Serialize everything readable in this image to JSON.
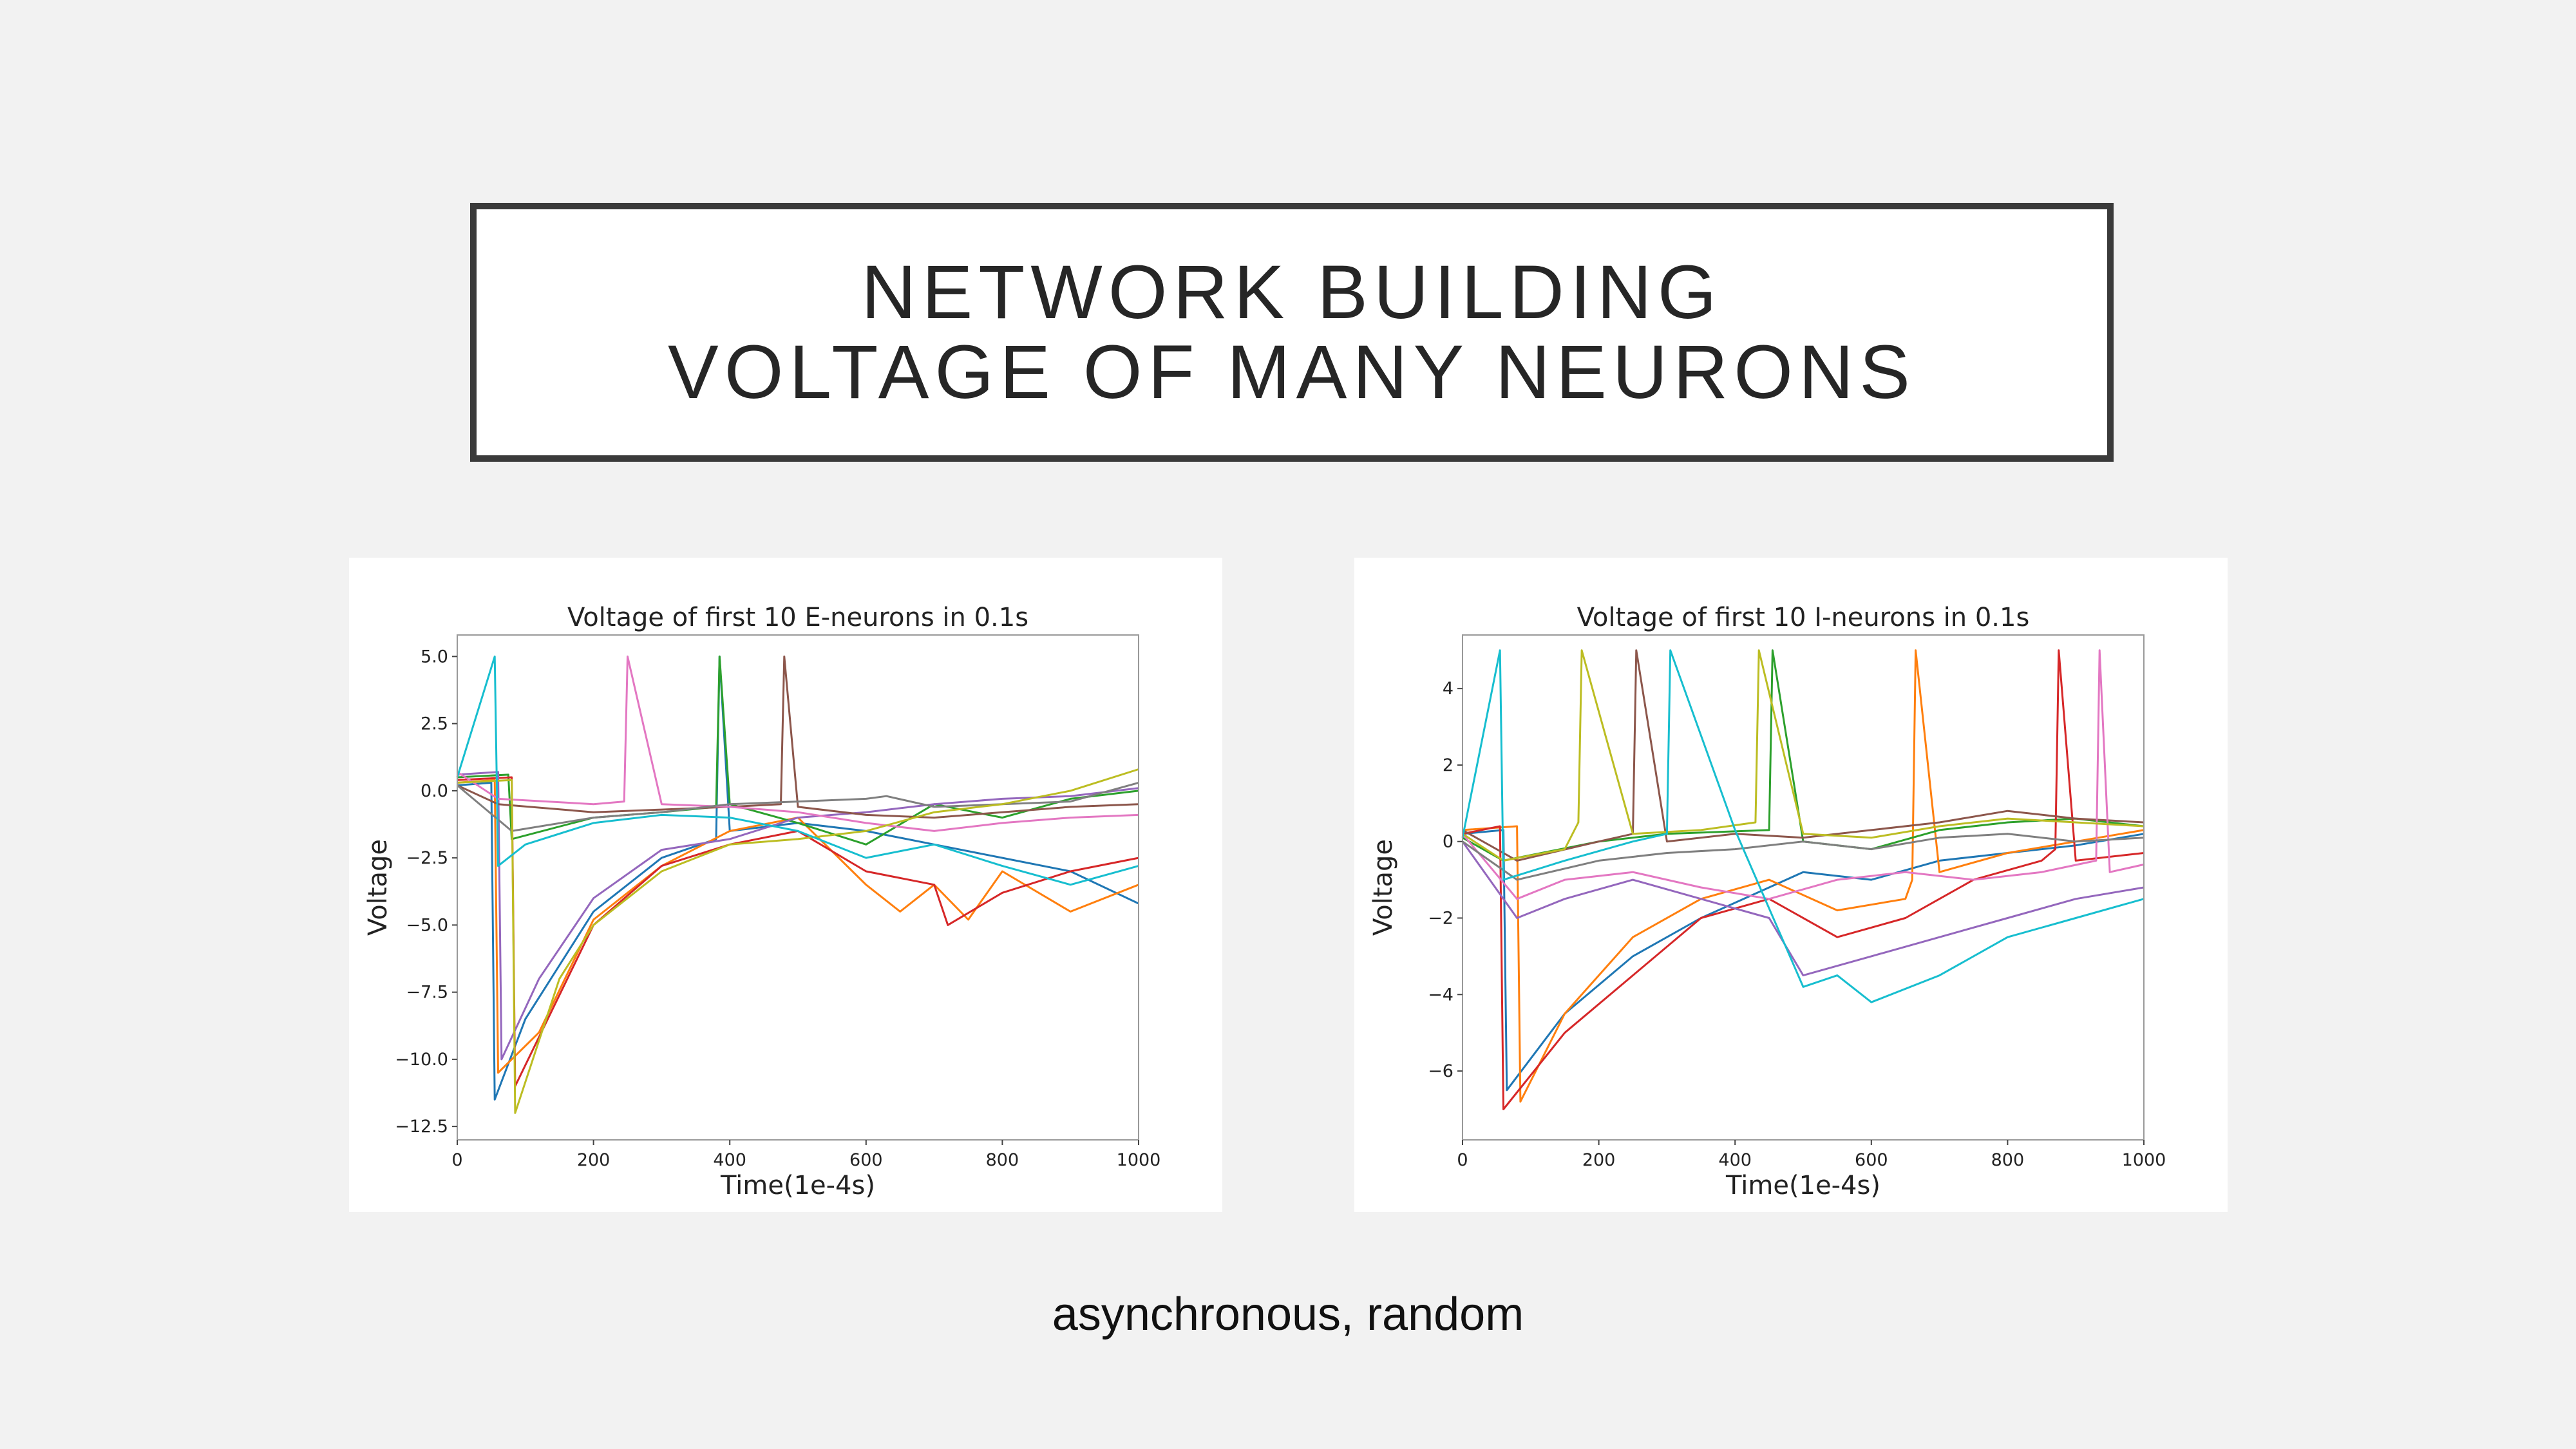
{
  "slide": {
    "title_line1": "NETWORK BUILDING",
    "title_line2": "VOLTAGE OF MANY NEURONS",
    "caption": "asynchronous, random"
  },
  "series_colors": [
    "#1f77b4",
    "#ff7f0e",
    "#2ca02c",
    "#d62728",
    "#9467bd",
    "#8c564b",
    "#e377c2",
    "#7f7f7f",
    "#bcbd22",
    "#17becf"
  ],
  "chart_data": [
    {
      "type": "line",
      "title": "Voltage of first 10 E-neurons in 0.1s",
      "xlabel": "Time(1e-4s)",
      "ylabel": "Voltage",
      "xlim": [
        0,
        1000
      ],
      "ylim": [
        -13,
        5.8
      ],
      "xticks": [
        0,
        200,
        400,
        600,
        800,
        1000
      ],
      "xtick_labels": [
        "0",
        "200",
        "400",
        "600",
        "800",
        "1000"
      ],
      "yticks": [
        5.0,
        2.5,
        0.0,
        -2.5,
        -5.0,
        -7.5,
        -10.0,
        -12.5
      ],
      "ytick_labels": [
        "5.0",
        "2.5",
        "0.0",
        "−2.5",
        "−5.0",
        "−7.5",
        "−10.0",
        "−12.5"
      ],
      "grid": false,
      "legend": "none",
      "series": [
        {
          "x": [
            0,
            50,
            55,
            100,
            200,
            300,
            380,
            385,
            400,
            500,
            600,
            700,
            800,
            900,
            1000
          ],
          "y": [
            0.2,
            0.3,
            -11.5,
            -8.5,
            -4.5,
            -2.5,
            -1.8,
            5.0,
            -1.5,
            -1.2,
            -1.5,
            -2.0,
            -2.5,
            -3.0,
            -4.2
          ]
        },
        {
          "x": [
            0,
            55,
            60,
            120,
            200,
            300,
            400,
            500,
            600,
            650,
            700,
            750,
            800,
            900,
            1000
          ],
          "y": [
            0.3,
            0.4,
            -10.5,
            -9.0,
            -4.8,
            -2.8,
            -1.5,
            -1.0,
            -3.5,
            -4.5,
            -3.5,
            -4.8,
            -3.0,
            -4.5,
            -3.5
          ]
        },
        {
          "x": [
            0,
            75,
            80,
            200,
            300,
            380,
            385,
            400,
            500,
            600,
            700,
            800,
            900,
            1000
          ],
          "y": [
            0.5,
            0.6,
            -1.8,
            -1.0,
            -0.8,
            -0.6,
            5.0,
            -0.5,
            -1.2,
            -2.0,
            -0.5,
            -1.0,
            -0.3,
            0.0
          ]
        },
        {
          "x": [
            0,
            80,
            85,
            200,
            300,
            400,
            500,
            600,
            700,
            720,
            800,
            900,
            1000
          ],
          "y": [
            0.4,
            0.5,
            -11.0,
            -5.0,
            -2.8,
            -2.0,
            -1.5,
            -3.0,
            -3.5,
            -5.0,
            -3.8,
            -3.0,
            -2.5
          ]
        },
        {
          "x": [
            0,
            60,
            65,
            120,
            200,
            300,
            400,
            500,
            600,
            700,
            800,
            900,
            1000
          ],
          "y": [
            0.6,
            0.7,
            -10.0,
            -7.0,
            -4.0,
            -2.2,
            -1.8,
            -1.0,
            -0.8,
            -0.5,
            -0.3,
            -0.2,
            0.1
          ]
        },
        {
          "x": [
            0,
            60,
            200,
            300,
            400,
            475,
            480,
            500,
            600,
            700,
            800,
            900,
            1000
          ],
          "y": [
            0.2,
            -0.5,
            -0.8,
            -0.7,
            -0.6,
            -0.5,
            5.0,
            -0.6,
            -0.9,
            -1.0,
            -0.8,
            -0.6,
            -0.5
          ]
        },
        {
          "x": [
            0,
            60,
            200,
            245,
            250,
            300,
            400,
            500,
            600,
            700,
            800,
            900,
            1000
          ],
          "y": [
            0.7,
            -0.3,
            -0.5,
            -0.4,
            5.0,
            -0.5,
            -0.6,
            -0.8,
            -1.2,
            -1.5,
            -1.2,
            -1.0,
            -0.9
          ]
        },
        {
          "x": [
            0,
            80,
            200,
            300,
            400,
            500,
            600,
            630,
            700,
            800,
            900,
            1000
          ],
          "y": [
            0.2,
            -1.5,
            -1.0,
            -0.8,
            -0.5,
            -0.4,
            -0.3,
            -0.2,
            -0.6,
            -0.5,
            -0.4,
            0.3
          ]
        },
        {
          "x": [
            0,
            80,
            85,
            150,
            200,
            300,
            400,
            500,
            600,
            700,
            800,
            900,
            1000
          ],
          "y": [
            0.3,
            0.4,
            -12.0,
            -7.0,
            -5.0,
            -3.0,
            -2.0,
            -1.8,
            -1.5,
            -0.8,
            -0.5,
            0.0,
            0.8
          ]
        },
        {
          "x": [
            0,
            55,
            60,
            100,
            200,
            300,
            400,
            500,
            600,
            700,
            800,
            900,
            1000
          ],
          "y": [
            0.5,
            5.0,
            -2.8,
            -2.0,
            -1.2,
            -0.9,
            -1.0,
            -1.5,
            -2.5,
            -2.0,
            -2.8,
            -3.5,
            -2.8
          ]
        }
      ]
    },
    {
      "type": "line",
      "title": "Voltage of first 10 I-neurons in 0.1s",
      "xlabel": "Time(1e-4s)",
      "ylabel": "Voltage",
      "xlim": [
        0,
        1000
      ],
      "ylim": [
        -7.8,
        5.4
      ],
      "xticks": [
        0,
        200,
        400,
        600,
        800,
        1000
      ],
      "xtick_labels": [
        "0",
        "200",
        "400",
        "600",
        "800",
        "1000"
      ],
      "yticks": [
        4,
        2,
        0,
        -2,
        -4,
        -6
      ],
      "ytick_labels": [
        "4",
        "2",
        "0",
        "−2",
        "−4",
        "−6"
      ],
      "grid": false,
      "legend": "none",
      "series": [
        {
          "x": [
            0,
            60,
            65,
            150,
            250,
            350,
            450,
            500,
            600,
            700,
            800,
            900,
            1000
          ],
          "y": [
            0.2,
            0.3,
            -6.5,
            -4.5,
            -3.0,
            -2.0,
            -1.2,
            -0.8,
            -1.0,
            -0.5,
            -0.3,
            -0.1,
            0.2
          ]
        },
        {
          "x": [
            0,
            80,
            85,
            150,
            250,
            350,
            450,
            550,
            650,
            660,
            665,
            700,
            800,
            900,
            1000
          ],
          "y": [
            0.3,
            0.4,
            -6.8,
            -4.5,
            -2.5,
            -1.5,
            -1.0,
            -1.8,
            -1.5,
            -1.0,
            5.0,
            -0.8,
            -0.3,
            0.0,
            0.3
          ]
        },
        {
          "x": [
            0,
            60,
            200,
            300,
            450,
            455,
            500,
            600,
            700,
            800,
            900,
            1000
          ],
          "y": [
            0.1,
            -0.5,
            0.0,
            0.2,
            0.3,
            5.0,
            0.0,
            -0.2,
            0.3,
            0.5,
            0.6,
            0.4
          ]
        },
        {
          "x": [
            0,
            55,
            60,
            150,
            250,
            350,
            450,
            550,
            650,
            750,
            850,
            870,
            875,
            900,
            1000
          ],
          "y": [
            0.2,
            0.4,
            -7.0,
            -5.0,
            -3.5,
            -2.0,
            -1.5,
            -2.5,
            -2.0,
            -1.0,
            -0.5,
            -0.2,
            5.0,
            -0.5,
            -0.3
          ]
        },
        {
          "x": [
            0,
            80,
            150,
            250,
            350,
            450,
            500,
            600,
            700,
            800,
            900,
            1000
          ],
          "y": [
            0.0,
            -2.0,
            -1.5,
            -1.0,
            -1.5,
            -2.0,
            -3.5,
            -3.0,
            -2.5,
            -2.0,
            -1.5,
            -1.2
          ]
        },
        {
          "x": [
            0,
            80,
            200,
            250,
            255,
            300,
            400,
            500,
            600,
            700,
            800,
            900,
            1000
          ],
          "y": [
            0.3,
            -0.5,
            0.0,
            0.2,
            5.0,
            0.0,
            0.2,
            0.1,
            0.3,
            0.5,
            0.8,
            0.6,
            0.5
          ]
        },
        {
          "x": [
            0,
            80,
            150,
            250,
            350,
            450,
            550,
            650,
            750,
            850,
            930,
            935,
            950,
            1000
          ],
          "y": [
            0.2,
            -1.5,
            -1.0,
            -0.8,
            -1.2,
            -1.5,
            -1.0,
            -0.8,
            -1.0,
            -0.8,
            -0.5,
            5.0,
            -0.8,
            -0.6
          ]
        },
        {
          "x": [
            0,
            80,
            200,
            300,
            400,
            500,
            600,
            700,
            800,
            900,
            1000
          ],
          "y": [
            0.0,
            -1.0,
            -0.5,
            -0.3,
            -0.2,
            0.0,
            -0.2,
            0.1,
            0.2,
            0.0,
            0.1
          ]
        },
        {
          "x": [
            0,
            60,
            150,
            170,
            175,
            250,
            350,
            430,
            435,
            500,
            600,
            700,
            800,
            900,
            1000
          ],
          "y": [
            0.2,
            -0.5,
            -0.2,
            0.5,
            5.0,
            0.2,
            0.3,
            0.5,
            5.0,
            0.2,
            0.1,
            0.4,
            0.6,
            0.5,
            0.4
          ]
        },
        {
          "x": [
            0,
            55,
            60,
            150,
            250,
            300,
            305,
            400,
            500,
            550,
            600,
            700,
            800,
            900,
            1000
          ],
          "y": [
            0.1,
            5.0,
            -1.0,
            -0.5,
            0.0,
            0.2,
            5.0,
            0.3,
            -3.8,
            -3.5,
            -4.2,
            -3.5,
            -2.5,
            -2.0,
            -1.5
          ]
        }
      ]
    }
  ]
}
